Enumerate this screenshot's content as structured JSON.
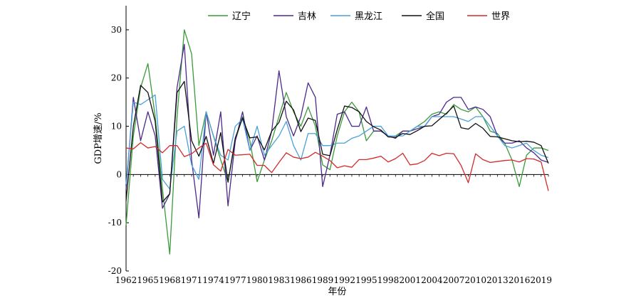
{
  "chart_data": {
    "type": "line",
    "xlabel": "年份",
    "ylabel": "GDP增速/%",
    "xlim": [
      1962,
      2020
    ],
    "ylim": [
      -20,
      35
    ],
    "x_ticks": [
      "1962",
      "1965",
      "1968",
      "1971",
      "1974",
      "1977",
      "1980",
      "1983",
      "1986",
      "1989",
      "1992",
      "1995",
      "1998",
      "2001",
      "2004",
      "2007",
      "2010",
      "2013",
      "2016",
      "2019"
    ],
    "y_ticks": [
      "-20",
      "-10",
      "0",
      "10",
      "20",
      "30"
    ],
    "legend_position": "top",
    "x": [
      1962,
      1963,
      1964,
      1965,
      1966,
      1967,
      1968,
      1969,
      1970,
      1971,
      1972,
      1973,
      1974,
      1975,
      1976,
      1977,
      1978,
      1979,
      1980,
      1981,
      1982,
      1983,
      1984,
      1985,
      1986,
      1987,
      1988,
      1989,
      1990,
      1991,
      1992,
      1993,
      1994,
      1995,
      1996,
      1997,
      1998,
      1999,
      2000,
      2001,
      2002,
      2003,
      2004,
      2005,
      2006,
      2007,
      2008,
      2009,
      2010,
      2011,
      2012,
      2013,
      2014,
      2015,
      2016,
      2017,
      2018,
      2019,
      2020
    ],
    "series": [
      {
        "name": "辽宁",
        "color": "#3a9a3a",
        "values": [
          -10.5,
          8,
          18,
          23,
          12,
          -3,
          -16.5,
          12,
          30,
          25,
          6,
          13,
          8,
          3,
          -1.5,
          7,
          12,
          7,
          -1.5,
          3,
          7,
          12,
          17,
          13,
          10,
          14,
          10,
          2,
          1,
          8,
          13,
          15,
          13,
          7,
          9,
          9,
          8,
          8,
          9,
          9,
          10,
          11,
          12.5,
          13,
          12.5,
          14.5,
          13.5,
          13,
          14,
          12,
          9,
          8.5,
          6.5,
          3,
          -2.5,
          4,
          5.5,
          5.5,
          5
        ]
      },
      {
        "name": "吉林",
        "color": "#4b2a8c",
        "values": [
          -3,
          16,
          7,
          13,
          8,
          -7,
          -4,
          18,
          27,
          3,
          -9,
          13,
          4,
          13,
          -6.5,
          7,
          13,
          5,
          8,
          3,
          9,
          21.5,
          12,
          8,
          12,
          19,
          16,
          -2.5,
          4,
          12.5,
          13,
          10,
          10,
          14,
          9,
          9,
          8,
          7.5,
          9,
          9,
          9.5,
          10,
          12,
          12.5,
          15,
          16,
          16,
          13.5,
          14,
          13.5,
          12,
          8,
          6.5,
          6.5,
          7,
          5.5,
          4.5,
          3,
          2.5
        ]
      },
      {
        "name": "黑龙江",
        "color": "#4aa0d8",
        "values": [
          -2,
          15,
          14.5,
          15.5,
          16.5,
          -1,
          -3,
          9,
          10,
          2,
          -1,
          13,
          8,
          4,
          3,
          10,
          11.5,
          5,
          10,
          4,
          6,
          8,
          11,
          6,
          3,
          8.5,
          8.5,
          6,
          6,
          6.5,
          6.5,
          7.5,
          8,
          9,
          10,
          10,
          8,
          8,
          8,
          9,
          10,
          10,
          12,
          12,
          12,
          12,
          11.5,
          11,
          12,
          12,
          10,
          8,
          6,
          5.5,
          6,
          6.5,
          5,
          4,
          3.5
        ]
      },
      {
        "name": "全国",
        "color": "#111111",
        "values": [
          -5.5,
          10,
          18.5,
          17,
          11,
          -5.7,
          -4,
          17,
          19.3,
          7,
          3.8,
          7.9,
          2.3,
          8.7,
          -1.6,
          7.6,
          11.7,
          7.6,
          7.8,
          5.1,
          9,
          10.8,
          15.2,
          13.4,
          8.9,
          11.7,
          11.2,
          4.2,
          3.9,
          9.3,
          14.2,
          13.9,
          13,
          11,
          9.9,
          9.2,
          7.8,
          7.7,
          8.5,
          8.3,
          9.1,
          10,
          10.1,
          11.4,
          12.7,
          14.2,
          9.7,
          9.4,
          10.6,
          9.6,
          7.9,
          7.8,
          7.4,
          7,
          6.8,
          6.9,
          6.7,
          6,
          2.3
        ]
      },
      {
        "name": "世界",
        "color": "#d42a2a",
        "values": [
          5.5,
          5.3,
          6.6,
          5.5,
          5.8,
          4.5,
          6,
          6,
          3.7,
          4.3,
          5.5,
          6.5,
          2,
          0.7,
          5.2,
          4,
          4.1,
          4.2,
          1.9,
          1.9,
          0.4,
          2.5,
          4.5,
          3.6,
          3.3,
          3.6,
          4.6,
          3.8,
          2.9,
          1.4,
          1.8,
          1.5,
          3.1,
          3.1,
          3.4,
          3.8,
          2.6,
          3.3,
          4.4,
          2.0,
          2.2,
          2.9,
          4.4,
          3.9,
          4.4,
          4.3,
          1.9,
          -1.7,
          4.3,
          3.1,
          2.5,
          2.7,
          2.9,
          3.0,
          2.6,
          3.3,
          3.2,
          2.6,
          -3.4
        ]
      }
    ]
  }
}
